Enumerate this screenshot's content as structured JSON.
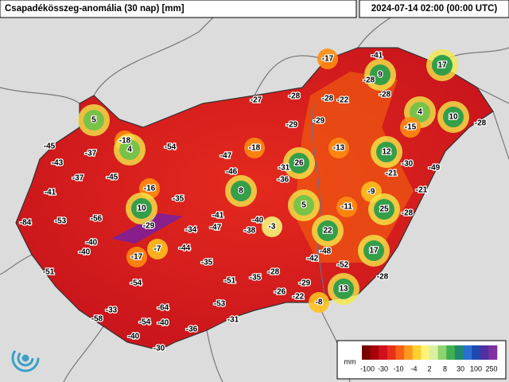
{
  "header": {
    "title": "Csapadékösszeg-anomália (30 nap) [mm]",
    "timestamp": "2024-07-14 02:00 (00:00 UTC)"
  },
  "stations": {
    "values": [
      -17,
      -41,
      17,
      -28,
      9,
      -28,
      -28,
      -28,
      -22,
      -27,
      5,
      4,
      10,
      -28,
      -29,
      -29,
      -15,
      -45,
      -18,
      4,
      -54,
      -18,
      -13,
      12,
      -37,
      -47,
      -43,
      26,
      -30,
      -49,
      -45,
      -31,
      -46,
      -21,
      -37,
      -36,
      -16,
      8,
      -9,
      -21,
      -41,
      -35,
      10,
      5,
      -11,
      25,
      -28,
      -53,
      -56,
      -41,
      -40,
      -3,
      -84,
      -29,
      -34,
      -47,
      -38,
      22,
      -40,
      -44,
      -7,
      -17,
      -40,
      17,
      -48,
      -42,
      -52,
      -35,
      -51,
      -28,
      -28,
      -54,
      -51,
      -35,
      -29,
      13,
      -26,
      -22,
      -8,
      -53,
      -64,
      -33,
      -58,
      -31,
      -54,
      -40,
      -36,
      -40,
      -30
    ]
  },
  "legend": {
    "unit": "mm",
    "labels": [
      "-100",
      "-30",
      "-10",
      "-4",
      "2",
      "8",
      "30",
      "100",
      "250"
    ]
  }
}
